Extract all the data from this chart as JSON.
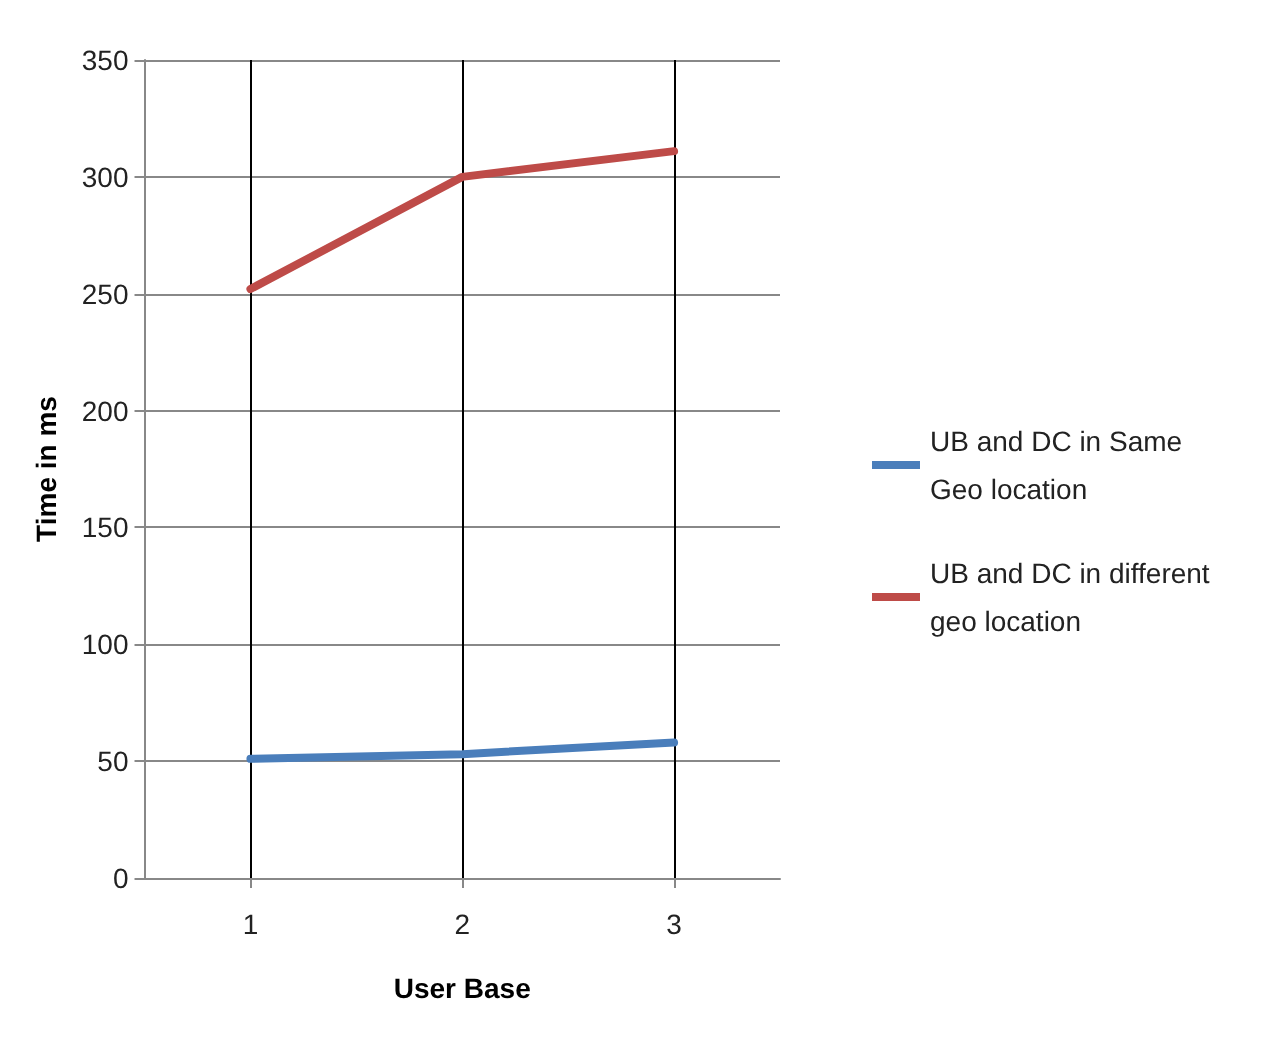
{
  "chart_data": {
    "type": "line",
    "xlabel": "User Base",
    "ylabel": "Time in ms",
    "x": [
      1,
      2,
      3
    ],
    "xlim": [
      0.5,
      3.5
    ],
    "xticks": [
      1,
      2,
      3
    ],
    "ylim": [
      0,
      350
    ],
    "yticks": [
      0,
      50,
      100,
      150,
      200,
      250,
      300,
      350
    ],
    "grid": true,
    "legend": "right",
    "marker": "none",
    "line_style": "solid",
    "series": [
      {
        "name": "UB and DC in Same Geo location",
        "color": "#4a7ebb",
        "values": [
          51,
          53,
          58
        ]
      },
      {
        "name": "UB and DC in different geo location",
        "color": "#be4b48",
        "values": [
          252,
          300,
          311
        ]
      }
    ]
  }
}
